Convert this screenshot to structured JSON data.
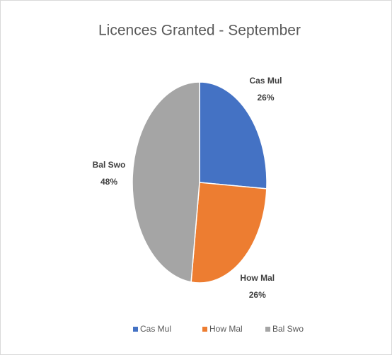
{
  "chart_data": {
    "type": "pie",
    "title": "Licences Granted -  September",
    "categories": [
      "Cas Mul",
      "How Mal",
      "Bal Swo"
    ],
    "values": [
      26,
      26,
      48
    ],
    "value_labels": [
      "26%",
      "26%",
      "48%"
    ],
    "colors": [
      "#4472c4",
      "#ed7d31",
      "#a5a5a5"
    ],
    "legend": "bottom"
  }
}
